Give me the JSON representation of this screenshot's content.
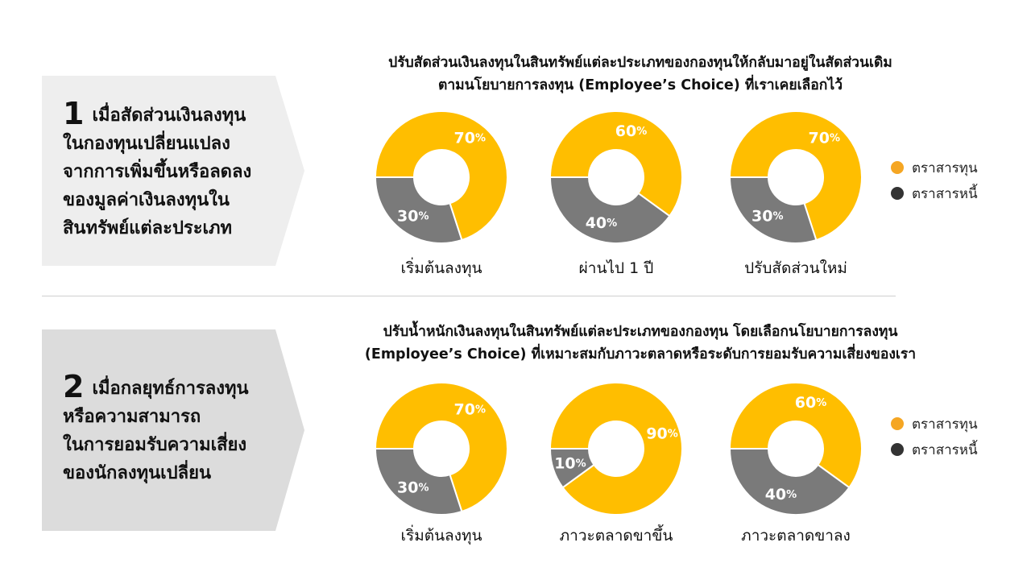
{
  "colors": {
    "equity": "#FFBE00",
    "bond": "#7A7A7A",
    "legend_equity": "#F5A623",
    "legend_bond": "#333333"
  },
  "legend": {
    "equity": "ตราสารทุน",
    "bond": "ตราสารหนี้"
  },
  "sections": [
    {
      "number": "1",
      "label_lines": [
        "เมื่อสัดส่วนเงินลงทุน",
        "ในกองทุนเปลี่ยนแปลง",
        "จากการเพิ่มขึ้นหรือลดลง",
        "ของมูลค่าเงินลงทุนใน",
        "สินทรัพย์แต่ละประเภท"
      ],
      "heading_lines": [
        "ปรับสัดส่วนเงินลงทุนในสินทรัพย์แต่ละประเภทของกองทุนให้กลับมาอยู่ในสัดส่วนเดิม",
        "ตามนโยบายการลงทุน (Employee’s Choice) ที่เราเคยเลือกไว้"
      ]
    },
    {
      "number": "2",
      "label_lines": [
        "เมื่อกลยุทธ์การลงทุน",
        "หรือความสามารถ",
        "ในการยอมรับความเสี่ยง",
        "ของนักลงทุนเปลี่ยน"
      ],
      "heading_lines": [
        "ปรับน้ำหนักเงินลงทุนในสินทรัพย์แต่ละประเภทของกองทุน โดยเลือกนโยบายการลงทุน",
        "(Employee’s Choice) ที่เหมาะสมกับภาวะตลาดหรือระดับการยอมรับความเสี่ยงของเรา"
      ]
    }
  ],
  "chart_data": [
    {
      "type": "pie",
      "donut": true,
      "caption": "เริ่มต้นลงทุน",
      "slices": [
        {
          "name": "ตราสารทุน",
          "value": 70,
          "label": "70%"
        },
        {
          "name": "ตราสารหนี้",
          "value": 30,
          "label": "30%"
        }
      ]
    },
    {
      "type": "pie",
      "donut": true,
      "caption": "ผ่านไป 1 ปี",
      "slices": [
        {
          "name": "ตราสารทุน",
          "value": 60,
          "label": "60%"
        },
        {
          "name": "ตราสารหนี้",
          "value": 40,
          "label": "40%"
        }
      ]
    },
    {
      "type": "pie",
      "donut": true,
      "caption": "ปรับสัดส่วนใหม่",
      "slices": [
        {
          "name": "ตราสารทุน",
          "value": 70,
          "label": "70%"
        },
        {
          "name": "ตราสารหนี้",
          "value": 30,
          "label": "30%"
        }
      ]
    },
    {
      "type": "pie",
      "donut": true,
      "caption": "เริ่มต้นลงทุน",
      "slices": [
        {
          "name": "ตราสารทุน",
          "value": 70,
          "label": "70%"
        },
        {
          "name": "ตราสารหนี้",
          "value": 30,
          "label": "30%"
        }
      ]
    },
    {
      "type": "pie",
      "donut": true,
      "caption": "ภาวะตลาดขาขึ้น",
      "slices": [
        {
          "name": "ตราสารทุน",
          "value": 90,
          "label": "90%"
        },
        {
          "name": "ตราสารหนี้",
          "value": 10,
          "label": "10%"
        }
      ]
    },
    {
      "type": "pie",
      "donut": true,
      "caption": "ภาวะตลาดขาลง",
      "slices": [
        {
          "name": "ตราสารทุน",
          "value": 60,
          "label": "60%"
        },
        {
          "name": "ตราสารหนี้",
          "value": 40,
          "label": "40%"
        }
      ]
    }
  ]
}
